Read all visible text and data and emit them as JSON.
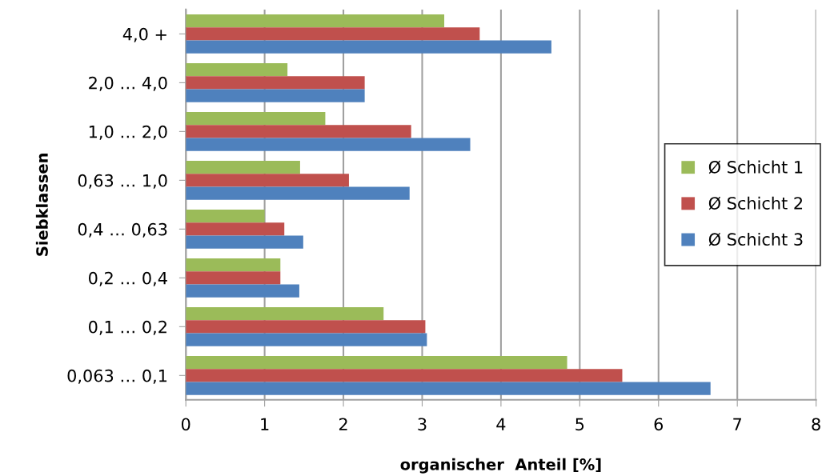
{
  "chart_data": {
    "type": "bar",
    "orientation": "horizontal",
    "xlabel": "organischer  Anteil [%]",
    "ylabel": "Siebklassen",
    "categories": [
      "4,0 +",
      "2,0 … 4,0",
      "1,0 … 2,0",
      "0,63 … 1,0",
      "0,4 … 0,63",
      "0,2 … 0,4",
      "0,1 … 0,2",
      "0,063 … 0,1"
    ],
    "series": [
      {
        "name": "Ø Schicht 1",
        "color": "#9bbb59",
        "values": [
          3.28,
          1.29,
          1.77,
          1.45,
          1.0,
          1.2,
          2.51,
          4.84
        ]
      },
      {
        "name": "Ø Schicht 2",
        "color": "#c0504d",
        "values": [
          3.73,
          2.27,
          2.86,
          2.07,
          1.25,
          1.2,
          3.04,
          5.54
        ]
      },
      {
        "name": "Ø Schicht 3",
        "color": "#4f81bd",
        "values": [
          4.64,
          2.27,
          3.61,
          2.84,
          1.49,
          1.44,
          3.06,
          6.66
        ]
      }
    ],
    "xlim": [
      0,
      8
    ],
    "xticks": [
      0,
      1,
      2,
      3,
      4,
      5,
      6,
      7,
      8
    ],
    "grid": "x",
    "legend": "right"
  }
}
